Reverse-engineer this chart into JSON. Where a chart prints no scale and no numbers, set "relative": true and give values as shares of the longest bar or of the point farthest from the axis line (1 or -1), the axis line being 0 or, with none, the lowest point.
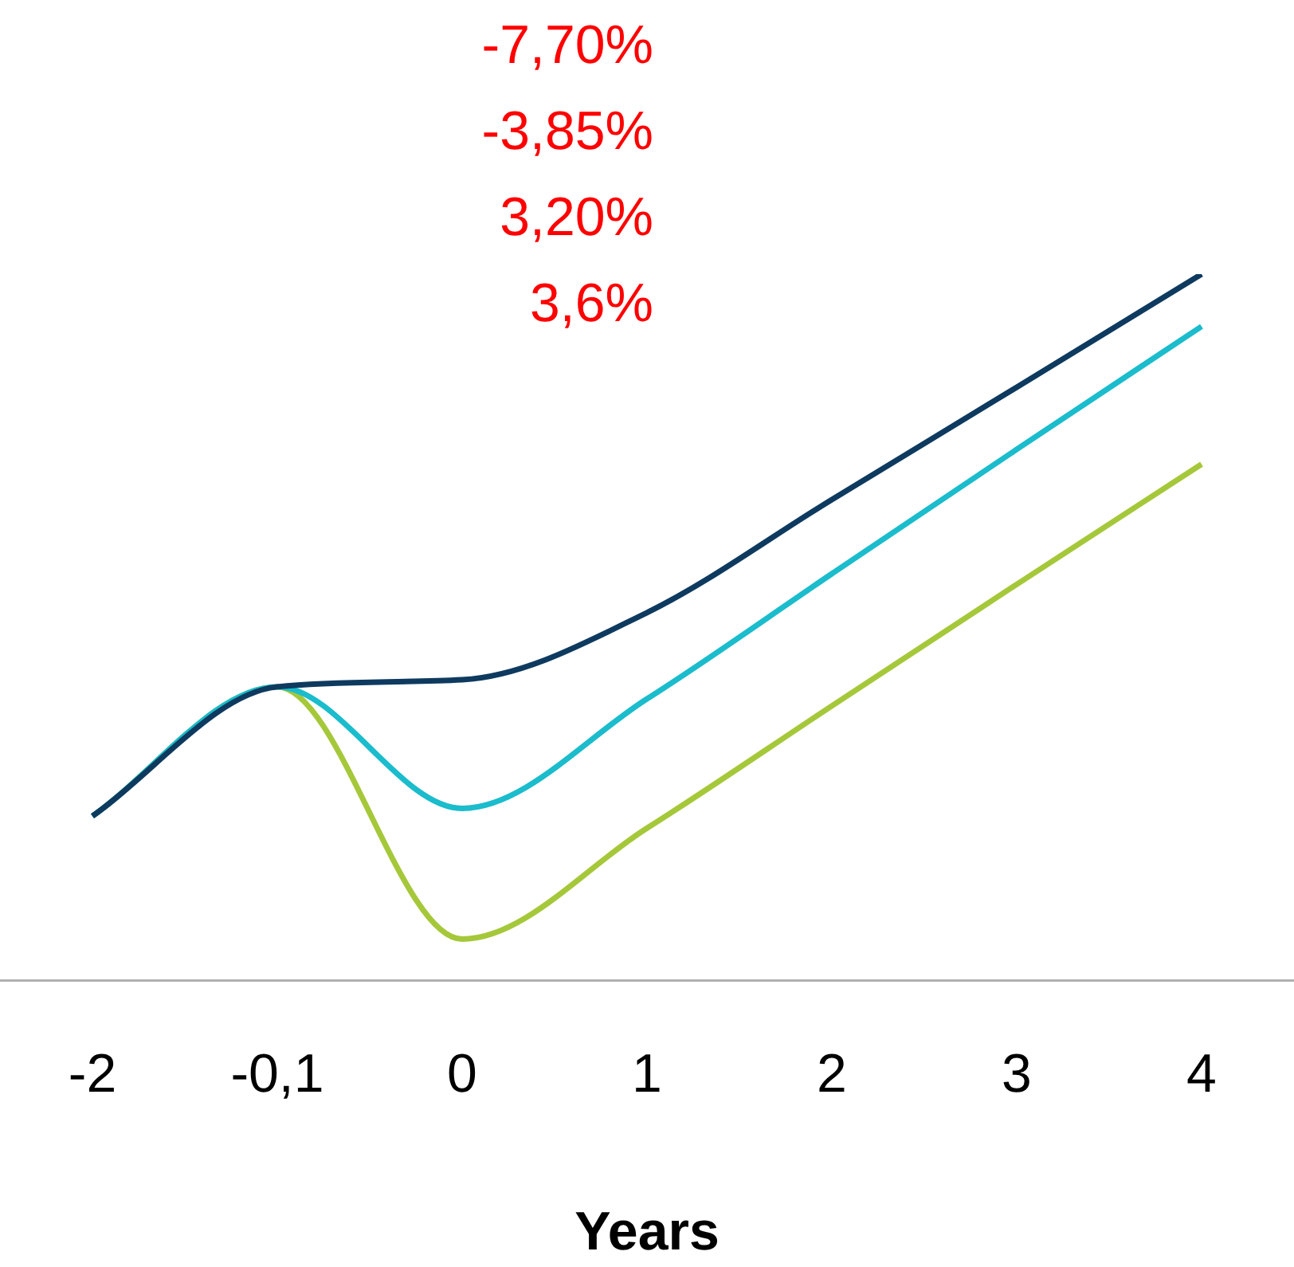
{
  "chart_data": {
    "type": "line",
    "relative": true,
    "xlabel": "Years",
    "categories": [
      "-2",
      "-0,1",
      "0",
      "1",
      "2",
      "3",
      "4"
    ],
    "series": [
      {
        "color": "#0e3a5f",
        "values": [
          0.233,
          0.416,
          0.426,
          0.521,
          0.681,
          0.84,
          1
        ]
      },
      {
        "color": "#1bbccc",
        "values": [
          0.233,
          0.416,
          0.244,
          0.399,
          0.576,
          0.752,
          0.926
        ]
      },
      {
        "color": "#a5c83a",
        "values": [
          0.233,
          0.416,
          0.059,
          0.216,
          0.389,
          0.561,
          0.731
        ]
      }
    ],
    "annotations": [
      "-7,70%",
      "-3,85%",
      "3,20%",
      "3,6%"
    ],
    "marker": "none",
    "grid": false,
    "legend": false
  }
}
